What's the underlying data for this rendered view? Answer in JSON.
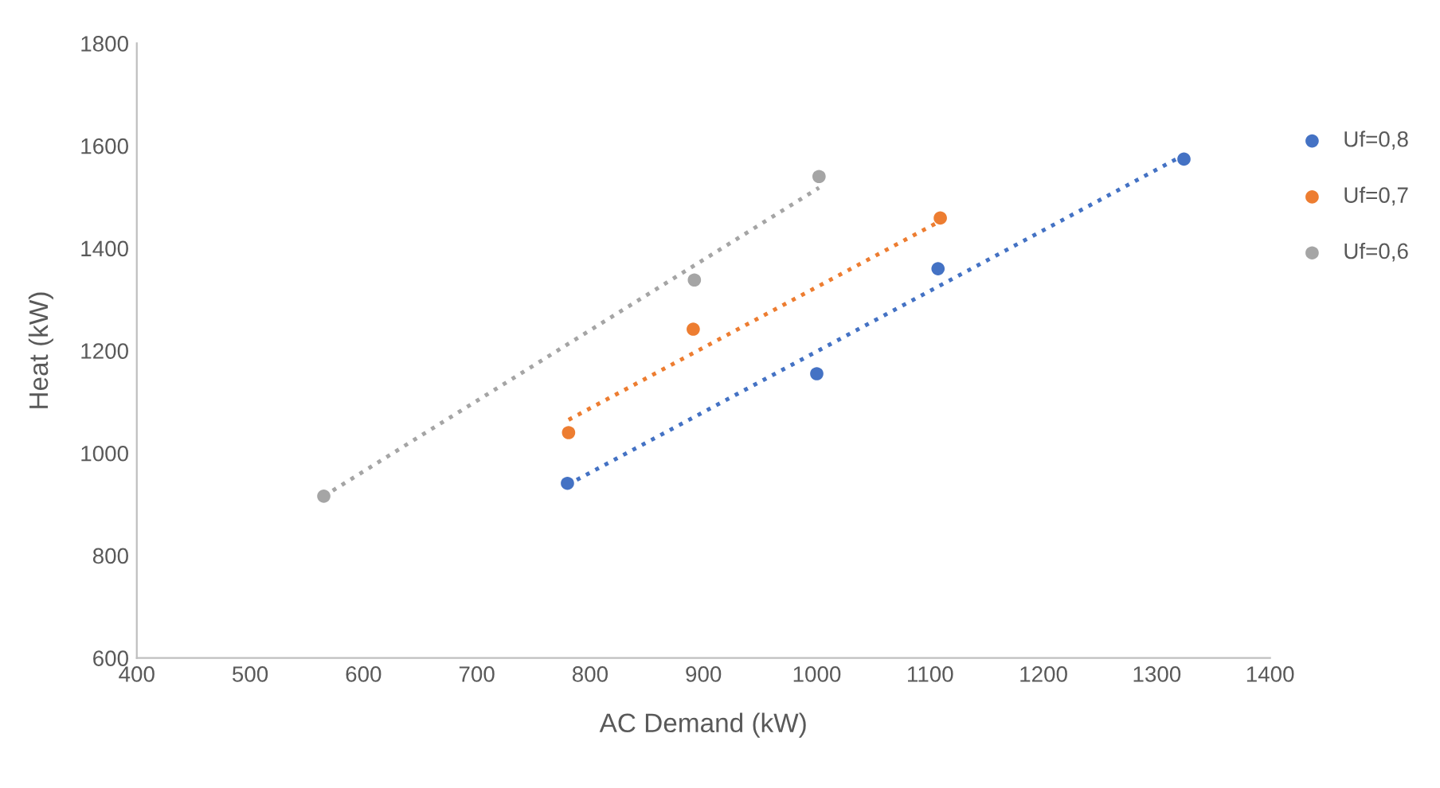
{
  "chart_data": {
    "type": "scatter",
    "xlabel": "AC Demand (kW)",
    "ylabel": "Heat (kW)",
    "xlim": [
      400,
      1400
    ],
    "xticks": [
      400,
      500,
      600,
      700,
      800,
      900,
      1000,
      1100,
      1200,
      1300,
      1400
    ],
    "ylim": [
      600,
      1800
    ],
    "yticks": [
      600,
      800,
      1000,
      1200,
      1400,
      1600,
      1800
    ],
    "grid": false,
    "legend": "right",
    "marker": "circle",
    "series": [
      {
        "name": "Uf=0,8",
        "color": "#4472c4",
        "x": [
          780,
          1000,
          1107,
          1324
        ],
        "values": [
          941,
          1155,
          1360,
          1574
        ]
      },
      {
        "name": "Uf=0,7",
        "color": "#ed7d31",
        "x": [
          781,
          891,
          1109
        ],
        "values": [
          1040,
          1242,
          1459
        ]
      },
      {
        "name": "Uf=0,6",
        "color": "#a5a5a5",
        "x": [
          565,
          892,
          1002
        ],
        "values": [
          916,
          1338,
          1540
        ]
      },
      {
        "type": "line",
        "color": "#4472c4",
        "line_style": "dotted",
        "marker": "none",
        "x": [
          780,
          1324
        ],
        "values": [
          938,
          1582
        ]
      },
      {
        "type": "line",
        "color": "#ed7d31",
        "line_style": "dotted",
        "marker": "none",
        "x": [
          781,
          1109
        ],
        "values": [
          1065,
          1453
        ]
      },
      {
        "type": "line",
        "color": "#a5a5a5",
        "line_style": "dotted",
        "marker": "none",
        "x": [
          565,
          1002
        ],
        "values": [
          916,
          1518
        ]
      }
    ]
  }
}
